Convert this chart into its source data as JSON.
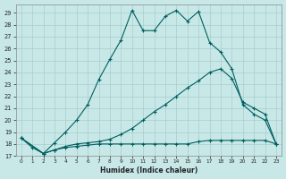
{
  "xlabel": "Humidex (Indice chaleur)",
  "background_color": "#c8e8e8",
  "grid_color": "#a8cccc",
  "line_color": "#005f5f",
  "xlim": [
    -0.5,
    23.5
  ],
  "ylim": [
    17,
    29.7
  ],
  "x_ticks": [
    0,
    1,
    2,
    3,
    4,
    5,
    6,
    7,
    8,
    9,
    10,
    11,
    12,
    13,
    14,
    15,
    16,
    17,
    18,
    19,
    20,
    21,
    22,
    23
  ],
  "y_ticks": [
    17,
    18,
    19,
    20,
    21,
    22,
    23,
    24,
    25,
    26,
    27,
    28,
    29
  ],
  "line1_x": [
    0,
    1,
    2,
    3,
    4,
    5,
    6,
    7,
    8,
    9,
    10,
    11,
    12,
    13,
    14,
    15,
    16,
    17,
    18,
    19,
    20,
    21,
    22,
    23
  ],
  "line1_y": [
    18.5,
    17.7,
    17.2,
    18.1,
    19.0,
    20.0,
    21.3,
    23.4,
    25.1,
    26.7,
    29.2,
    27.5,
    27.5,
    28.7,
    29.2,
    28.3,
    29.1,
    26.5,
    25.7,
    24.3,
    21.3,
    20.5,
    20.0,
    18.0
  ],
  "line2_x": [
    0,
    2,
    3,
    4,
    5,
    6,
    7,
    8,
    9,
    10,
    11,
    12,
    13,
    14,
    15,
    16,
    17,
    18,
    19,
    20,
    21,
    22,
    23
  ],
  "line2_y": [
    18.5,
    17.2,
    17.5,
    17.8,
    18.0,
    18.1,
    18.2,
    18.4,
    18.8,
    19.3,
    20.0,
    20.7,
    21.3,
    22.0,
    22.7,
    23.3,
    24.0,
    24.3,
    23.5,
    21.5,
    21.0,
    20.5,
    18.0
  ],
  "line3_x": [
    0,
    2,
    3,
    4,
    5,
    6,
    7,
    8,
    9,
    10,
    11,
    12,
    13,
    14,
    15,
    16,
    17,
    18,
    19,
    20,
    21,
    22,
    23
  ],
  "line3_y": [
    18.5,
    17.2,
    17.5,
    17.7,
    17.8,
    17.9,
    18.0,
    18.0,
    18.0,
    18.0,
    18.0,
    18.0,
    18.0,
    18.0,
    18.0,
    18.2,
    18.3,
    18.3,
    18.3,
    18.3,
    18.3,
    18.3,
    18.0
  ]
}
